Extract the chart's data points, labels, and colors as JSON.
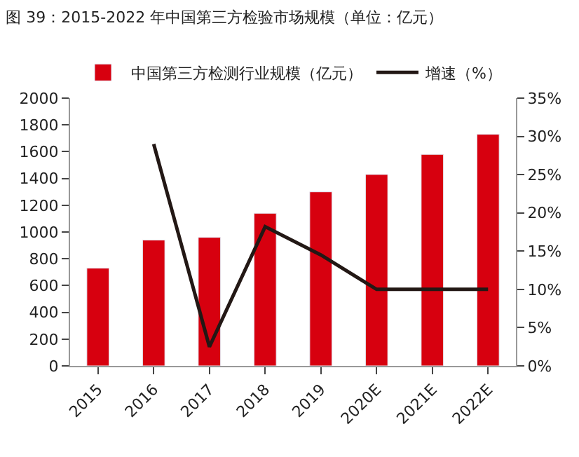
{
  "chart_data": {
    "type": "bar",
    "title": "图 39：2015-2022 年中国第三方检验市场规模（单位：亿元）",
    "categories": [
      "2015",
      "2016",
      "2017",
      "2018",
      "2019",
      "2020E",
      "2021E",
      "2022E"
    ],
    "series": [
      {
        "name": "中国第三方检测行业规模（亿元）",
        "color": "#d7000f",
        "values": [
          730,
          940,
          960,
          1140,
          1300,
          1430,
          1580,
          1730
        ]
      },
      {
        "name": "增速（%）",
        "type": "line",
        "axis": "y2",
        "color": "#231815",
        "marker": "none",
        "values": [
          null,
          29,
          2.5,
          18.2,
          14.5,
          10,
          10,
          10
        ]
      }
    ],
    "ylim": [
      0,
      2000
    ],
    "yticks": [
      0,
      200,
      400,
      600,
      800,
      1000,
      1200,
      1400,
      1600,
      1800,
      2000
    ],
    "y2lim": [
      0,
      35
    ],
    "y2ticks": [
      {
        "value": 0,
        "label": "0%"
      },
      {
        "value": 5,
        "label": "5%"
      },
      {
        "value": 10,
        "label": "10%"
      },
      {
        "value": 15,
        "label": "15%"
      },
      {
        "value": 20,
        "label": "20%"
      },
      {
        "value": 25,
        "label": "25%"
      },
      {
        "value": 30,
        "label": "30%"
      },
      {
        "value": 35,
        "label": "35%"
      }
    ],
    "legend": "top"
  }
}
